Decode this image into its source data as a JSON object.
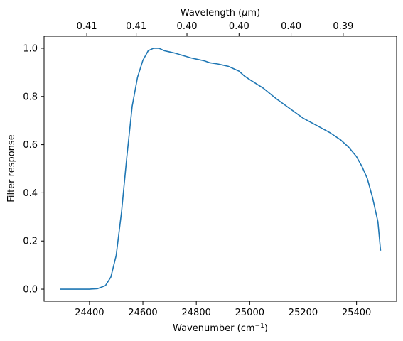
{
  "chart_data": {
    "type": "line",
    "title": "",
    "xlabel": "Wavenumber (cm",
    "xlabel_superscript": "−1",
    "xlabel_suffix": ")",
    "ylabel": "Filter response",
    "top_xlabel": "Wavelength (",
    "top_xlabel_mu": "μ",
    "top_xlabel_suffix": "m)",
    "xlim": [
      24230,
      25550
    ],
    "ylim": [
      -0.05,
      1.05
    ],
    "grid": false,
    "x_ticks": [
      24400,
      24600,
      24800,
      25000,
      25200,
      25400
    ],
    "x_tick_labels": [
      "24400",
      "24600",
      "24800",
      "25000",
      "25200",
      "25400"
    ],
    "y_ticks": [
      0.0,
      0.2,
      0.4,
      0.6,
      0.8,
      1.0
    ],
    "y_tick_labels": [
      "0.0",
      "0.2",
      "0.4",
      "0.6",
      "0.8",
      "1.0"
    ],
    "top_ticks": [
      24390,
      24575,
      24765,
      24960,
      25155,
      25350
    ],
    "top_tick_labels": [
      "0.41",
      "0.41",
      "0.40",
      "0.40",
      "0.40",
      "0.39"
    ],
    "colors": {
      "line": "#1f77b4"
    },
    "series": [
      {
        "x": [
          24290,
          24350,
          24400,
          24430,
          24460,
          24480,
          24500,
          24520,
          24540,
          24560,
          24580,
          24600,
          24620,
          24640,
          24660,
          24680,
          24700,
          24720,
          24750,
          24780,
          24800,
          24830,
          24850,
          24880,
          24900,
          24920,
          24940,
          24960,
          24980,
          25000,
          25050,
          25100,
          25150,
          25200,
          25250,
          25300,
          25340,
          25370,
          25400,
          25420,
          25440,
          25460,
          25480,
          25490
        ],
        "y": [
          0.0,
          0.0,
          0.0,
          0.002,
          0.015,
          0.05,
          0.14,
          0.32,
          0.55,
          0.76,
          0.88,
          0.95,
          0.99,
          1.0,
          1.0,
          0.99,
          0.985,
          0.98,
          0.97,
          0.96,
          0.955,
          0.948,
          0.94,
          0.935,
          0.93,
          0.925,
          0.915,
          0.905,
          0.885,
          0.87,
          0.835,
          0.79,
          0.75,
          0.71,
          0.68,
          0.65,
          0.62,
          0.59,
          0.55,
          0.51,
          0.46,
          0.38,
          0.28,
          0.16
        ]
      }
    ]
  }
}
